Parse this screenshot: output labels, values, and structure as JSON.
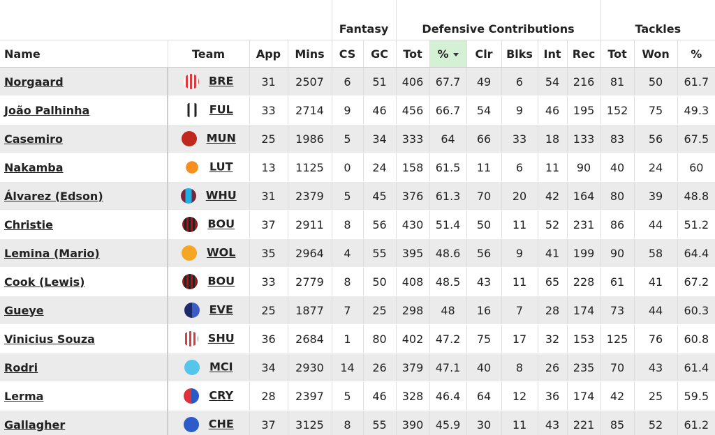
{
  "header_groups": [
    "Fantasy",
    "Defensive Contributions",
    "Tackles"
  ],
  "columns": [
    "Name",
    "Team",
    "App",
    "Mins",
    "CS",
    "GC",
    "Tot",
    "%",
    "Clr",
    "Blks",
    "Int",
    "Rec",
    "Tot",
    "Won",
    "%"
  ],
  "rows": [
    [
      "Norgaard",
      "BRE",
      31,
      2507,
      6,
      51,
      406,
      67.7,
      49,
      6,
      54,
      216,
      81,
      50,
      61.7
    ],
    [
      "João Palhinha",
      "FUL",
      33,
      2714,
      9,
      46,
      456,
      66.7,
      54,
      9,
      46,
      195,
      152,
      75,
      49.3
    ],
    [
      "Casemiro",
      "MUN",
      25,
      1986,
      5,
      34,
      333,
      64,
      66,
      33,
      18,
      133,
      83,
      56,
      67.5
    ],
    [
      "Nakamba",
      "LUT",
      13,
      1125,
      0,
      24,
      158,
      61.5,
      11,
      6,
      11,
      90,
      40,
      24,
      60
    ],
    [
      "Álvarez (Edson)",
      "WHU",
      31,
      2379,
      5,
      45,
      376,
      61.3,
      70,
      20,
      42,
      164,
      80,
      39,
      48.8
    ],
    [
      "Christie",
      "BOU",
      37,
      2911,
      8,
      56,
      430,
      51.4,
      50,
      11,
      52,
      231,
      86,
      44,
      51.2
    ],
    [
      "Lemina (Mario)",
      "WOL",
      35,
      2964,
      4,
      55,
      395,
      48.6,
      56,
      9,
      41,
      199,
      90,
      58,
      64.4
    ],
    [
      "Cook (Lewis)",
      "BOU",
      33,
      2779,
      8,
      50,
      408,
      48.5,
      43,
      11,
      65,
      228,
      61,
      41,
      67.2
    ],
    [
      "Gueye",
      "EVE",
      25,
      1877,
      7,
      25,
      298,
      48,
      16,
      7,
      28,
      174,
      73,
      44,
      60.3
    ],
    [
      "Vinicius Souza",
      "SHU",
      36,
      2684,
      1,
      80,
      402,
      47.2,
      75,
      17,
      32,
      153,
      125,
      76,
      60.8
    ],
    [
      "Rodri",
      "MCI",
      34,
      2930,
      14,
      26,
      379,
      47.1,
      40,
      8,
      26,
      235,
      70,
      43,
      61.4
    ],
    [
      "Lerma",
      "CRY",
      28,
      2397,
      5,
      46,
      328,
      46.4,
      64,
      12,
      36,
      174,
      42,
      25,
      59.5
    ],
    [
      "Gallagher",
      "CHE",
      37,
      3125,
      8,
      55,
      390,
      45.9,
      30,
      11,
      43,
      221,
      85,
      52,
      61.2
    ]
  ]
}
